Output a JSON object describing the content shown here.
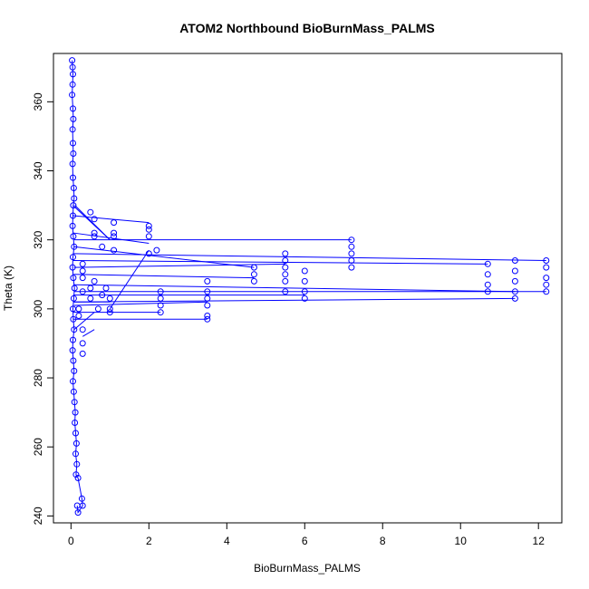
{
  "chart_data": {
    "type": "scatter",
    "title": "ATOM2 Northbound BioBurnMass_PALMS",
    "xlabel": "BioBurnMass_PALMS",
    "ylabel": "Theta (K)",
    "xlim": [
      -0.45,
      12.6
    ],
    "ylim": [
      238,
      374
    ],
    "xticks": [
      0,
      2,
      4,
      6,
      8,
      10,
      12
    ],
    "yticks": [
      240,
      260,
      280,
      300,
      320,
      340,
      360
    ],
    "grid": false,
    "legend": "none",
    "marker": "open-circle",
    "color": "#0000ff",
    "series": [
      {
        "values_core": [
          [
            0.03,
            372
          ],
          [
            0.04,
            370
          ],
          [
            0.05,
            368
          ],
          [
            0.04,
            365
          ],
          [
            0.03,
            362
          ],
          [
            0.05,
            358
          ],
          [
            0.06,
            355
          ],
          [
            0.04,
            352
          ],
          [
            0.05,
            348
          ],
          [
            0.06,
            345
          ],
          [
            0.04,
            342
          ],
          [
            0.05,
            338
          ],
          [
            0.07,
            335
          ],
          [
            0.08,
            332
          ],
          [
            0.06,
            330
          ],
          [
            0.05,
            327
          ],
          [
            0.04,
            324
          ],
          [
            0.06,
            321
          ],
          [
            0.08,
            318
          ],
          [
            0.05,
            315
          ],
          [
            0.04,
            312
          ],
          [
            0.06,
            309
          ],
          [
            0.09,
            306
          ],
          [
            0.07,
            303
          ],
          [
            0.05,
            300
          ],
          [
            0.06,
            297
          ],
          [
            0.08,
            294
          ],
          [
            0.05,
            291
          ],
          [
            0.04,
            288
          ],
          [
            0.06,
            285
          ],
          [
            0.08,
            282
          ],
          [
            0.05,
            279
          ],
          [
            0.07,
            276
          ],
          [
            0.09,
            273
          ],
          [
            0.11,
            270
          ],
          [
            0.1,
            267
          ],
          [
            0.12,
            264
          ],
          [
            0.14,
            261
          ],
          [
            0.12,
            258
          ],
          [
            0.15,
            255
          ],
          [
            0.13,
            252
          ],
          [
            0.18,
            251
          ],
          [
            0.28,
            245
          ],
          [
            0.3,
            243
          ],
          [
            0.18,
            241
          ],
          [
            0.16,
            243
          ]
        ],
        "values_excursions": [
          [
            0.5,
            328
          ],
          [
            0.6,
            326
          ],
          [
            1.1,
            325
          ],
          [
            2.0,
            324
          ],
          [
            0.6,
            322
          ],
          [
            1.1,
            322
          ],
          [
            2.0,
            323
          ],
          [
            0.6,
            321
          ],
          [
            1.1,
            321
          ],
          [
            2.0,
            321
          ],
          [
            0.8,
            318
          ],
          [
            2.2,
            317
          ],
          [
            1.1,
            317
          ],
          [
            2.0,
            316
          ],
          [
            7.2,
            320
          ],
          [
            7.2,
            318
          ],
          [
            7.2,
            316
          ],
          [
            7.2,
            314
          ],
          [
            7.2,
            312
          ],
          [
            5.5,
            316
          ],
          [
            5.5,
            314
          ],
          [
            5.5,
            312
          ],
          [
            5.5,
            310
          ],
          [
            5.5,
            308
          ],
          [
            5.5,
            305
          ],
          [
            4.7,
            312
          ],
          [
            4.7,
            310
          ],
          [
            4.7,
            308
          ],
          [
            6.0,
            311
          ],
          [
            6.0,
            308
          ],
          [
            6.0,
            305
          ],
          [
            6.0,
            303
          ],
          [
            10.7,
            313
          ],
          [
            10.7,
            310
          ],
          [
            10.7,
            307
          ],
          [
            10.7,
            305
          ],
          [
            11.4,
            314
          ],
          [
            11.4,
            311
          ],
          [
            11.4,
            308
          ],
          [
            11.4,
            305
          ],
          [
            11.4,
            303
          ],
          [
            12.2,
            314
          ],
          [
            12.2,
            312
          ],
          [
            12.2,
            309
          ],
          [
            12.2,
            307
          ],
          [
            12.2,
            305
          ],
          [
            3.5,
            308
          ],
          [
            3.5,
            305
          ],
          [
            3.5,
            303
          ],
          [
            3.5,
            301
          ],
          [
            3.5,
            298
          ],
          [
            3.5,
            297
          ],
          [
            2.3,
            305
          ],
          [
            2.3,
            303
          ],
          [
            2.3,
            301
          ],
          [
            2.3,
            299
          ],
          [
            1.0,
            303
          ],
          [
            1.0,
            300
          ],
          [
            1.0,
            299
          ],
          [
            0.9,
            306
          ],
          [
            0.8,
            304
          ],
          [
            0.7,
            300
          ],
          [
            0.6,
            308
          ],
          [
            0.5,
            306
          ],
          [
            0.5,
            303
          ],
          [
            0.3,
            313
          ],
          [
            0.3,
            311
          ],
          [
            0.3,
            309
          ],
          [
            0.3,
            305
          ],
          [
            0.2,
            300
          ],
          [
            0.2,
            298
          ],
          [
            0.3,
            294
          ],
          [
            0.3,
            290
          ],
          [
            0.3,
            287
          ]
        ],
        "connections": [
          [
            [
              0.05,
              330
            ],
            [
              1.0,
              320
            ]
          ],
          [
            [
              0.05,
              327
            ],
            [
              2.0,
              325
            ]
          ],
          [
            [
              0.06,
              322
            ],
            [
              2.0,
              319
            ]
          ],
          [
            [
              0.08,
              320
            ],
            [
              7.2,
              320
            ]
          ],
          [
            [
              0.05,
              316
            ],
            [
              12.2,
              314
            ]
          ],
          [
            [
              0.06,
              314
            ],
            [
              10.7,
              313
            ]
          ],
          [
            [
              0.08,
              312
            ],
            [
              5.5,
              313
            ]
          ],
          [
            [
              0.07,
              318
            ],
            [
              4.7,
              312
            ]
          ],
          [
            [
              0.06,
              307
            ],
            [
              11.4,
              305
            ]
          ],
          [
            [
              0.09,
              305
            ],
            [
              12.2,
              305
            ]
          ],
          [
            [
              0.07,
              302
            ],
            [
              11.4,
              303
            ]
          ],
          [
            [
              0.06,
              304
            ],
            [
              6.0,
              304
            ]
          ],
          [
            [
              0.08,
              301
            ],
            [
              3.5,
              302
            ]
          ],
          [
            [
              0.06,
              299
            ],
            [
              2.3,
              299
            ]
          ],
          [
            [
              0.05,
              297
            ],
            [
              3.5,
              297
            ]
          ],
          [
            [
              0.07,
              310
            ],
            [
              4.7,
              309
            ]
          ],
          [
            [
              0.06,
              302
            ],
            [
              1.0,
              302
            ]
          ],
          [
            [
              0.08,
              294
            ],
            [
              0.6,
              299
            ]
          ],
          [
            [
              1.0,
              320
            ],
            [
              0.1,
              330
            ]
          ],
          [
            [
              2.0,
              317
            ],
            [
              1.0,
              300
            ]
          ],
          [
            [
              0.3,
              292
            ],
            [
              0.6,
              294
            ]
          ]
        ]
      }
    ]
  }
}
